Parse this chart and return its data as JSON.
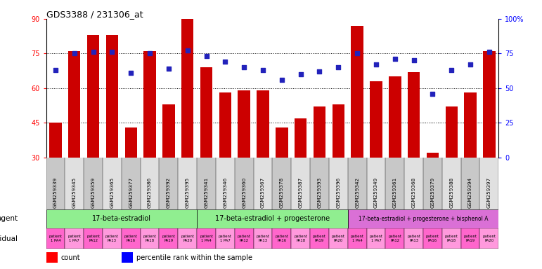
{
  "title": "GDS3388 / 231306_at",
  "gsm_labels": [
    "GSM259339",
    "GSM259345",
    "GSM259359",
    "GSM259365",
    "GSM259377",
    "GSM259386",
    "GSM259392",
    "GSM259395",
    "GSM259341",
    "GSM259346",
    "GSM259360",
    "GSM259367",
    "GSM259378",
    "GSM259387",
    "GSM259393",
    "GSM259396",
    "GSM259342",
    "GSM259349",
    "GSM259361",
    "GSM259368",
    "GSM259379",
    "GSM259388",
    "GSM259394",
    "GSM259397"
  ],
  "bar_values": [
    45,
    76,
    83,
    83,
    43,
    76,
    53,
    90,
    69,
    58,
    59,
    59,
    43,
    47,
    52,
    53,
    87,
    63,
    65,
    67,
    32,
    52,
    58,
    76
  ],
  "percentile_values": [
    63,
    75,
    76,
    76,
    61,
    75,
    64,
    77,
    73,
    69,
    65,
    63,
    56,
    60,
    62,
    65,
    75,
    67,
    71,
    70,
    46,
    63,
    67,
    76
  ],
  "ylim_left": [
    30,
    90
  ],
  "ylim_right": [
    0,
    100
  ],
  "yticks_left": [
    30,
    45,
    60,
    75,
    90
  ],
  "yticks_right": [
    0,
    25,
    50,
    75,
    100
  ],
  "agent_groups": [
    {
      "label": "17-beta-estradiol",
      "start": 0,
      "end": 8,
      "color": "#90EE90"
    },
    {
      "label": "17-beta-estradiol + progesterone",
      "start": 8,
      "end": 16,
      "color": "#90EE90"
    },
    {
      "label": "17-beta-estradiol + progesterone + bisphenol A",
      "start": 16,
      "end": 24,
      "color": "#DA70D6"
    }
  ],
  "indiv_labels": [
    "patient\n1 PA4",
    "patient\n1 PA7",
    "patient\nPA12",
    "patient\nPA13",
    "patient\nPA16",
    "patient\nPA18",
    "patient\nPA19",
    "patient\nPA20",
    "patient\n1 PA4",
    "patient\n1 PA7",
    "patient\nPA12",
    "patient\nPA13",
    "patient\nPA16",
    "patient\nPA18",
    "patient\nPA19",
    "patient\nPA20",
    "patient\n1 PA4",
    "patient\n1 PA7",
    "patient\nPA12",
    "patient\nPA13",
    "patient\nPA16",
    "patient\nPA18",
    "patient\nPA19",
    "patient\nPA20"
  ],
  "bar_color": "#CC0000",
  "dot_color": "#2222BB",
  "gsm_bg_even": "#C8C8C8",
  "gsm_bg_odd": "#E0E0E0",
  "indiv_color_even": "#FF66CC",
  "indiv_color_odd": "#FF99DD"
}
